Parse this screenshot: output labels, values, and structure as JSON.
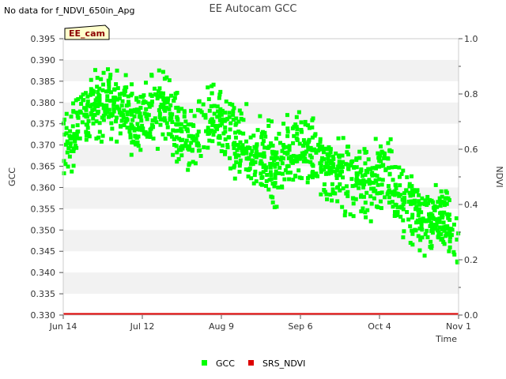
{
  "header": {
    "title": "EE Autocam GCC",
    "no_data_note": "No data for f_NDVI_650in_Apg",
    "site_label": "EE_cam"
  },
  "colors": {
    "gcc": "#00ff00",
    "ndvi": "#dd0000",
    "band": "#f2f2f2"
  },
  "chart_data": {
    "type": "scatter",
    "title": "EE Autocam GCC",
    "xlabel": "Time",
    "ylabel": "GCC",
    "y2label": "NDVI",
    "x_range_days": [
      0,
      140
    ],
    "ylim": [
      0.33,
      0.395
    ],
    "y2lim": [
      0.0,
      1.0
    ],
    "x_ticks": [
      {
        "day": 0,
        "label": "Jun 14"
      },
      {
        "day": 28,
        "label": "Jul 12"
      },
      {
        "day": 56,
        "label": "Aug 9"
      },
      {
        "day": 84,
        "label": "Sep 6"
      },
      {
        "day": 112,
        "label": "Oct 4"
      },
      {
        "day": 140,
        "label": "Nov 1"
      }
    ],
    "y_ticks": [
      "0.330",
      "0.335",
      "0.340",
      "0.345",
      "0.350",
      "0.355",
      "0.360",
      "0.365",
      "0.370",
      "0.375",
      "0.380",
      "0.385",
      "0.390",
      "0.395"
    ],
    "y2_ticks": [
      "0.0",
      "0.2",
      "0.4",
      "0.6",
      "0.8",
      "1.0"
    ],
    "legend": [
      "GCC",
      "SRS_NDVI"
    ],
    "series": [
      {
        "name": "GCC",
        "trend": [
          [
            0,
            0.37
          ],
          [
            3,
            0.372
          ],
          [
            6,
            0.376
          ],
          [
            10,
            0.378
          ],
          [
            14,
            0.38
          ],
          [
            18,
            0.38
          ],
          [
            22,
            0.378
          ],
          [
            26,
            0.375
          ],
          [
            30,
            0.377
          ],
          [
            34,
            0.379
          ],
          [
            38,
            0.376
          ],
          [
            42,
            0.373
          ],
          [
            46,
            0.371
          ],
          [
            50,
            0.374
          ],
          [
            54,
            0.377
          ],
          [
            58,
            0.373
          ],
          [
            62,
            0.37
          ],
          [
            66,
            0.369
          ],
          [
            70,
            0.367
          ],
          [
            74,
            0.365
          ],
          [
            78,
            0.367
          ],
          [
            82,
            0.369
          ],
          [
            86,
            0.368
          ],
          [
            90,
            0.367
          ],
          [
            94,
            0.365
          ],
          [
            98,
            0.363
          ],
          [
            102,
            0.362
          ],
          [
            106,
            0.361
          ],
          [
            110,
            0.362
          ],
          [
            114,
            0.364
          ],
          [
            118,
            0.36
          ],
          [
            122,
            0.356
          ],
          [
            126,
            0.354
          ],
          [
            130,
            0.352
          ],
          [
            134,
            0.353
          ],
          [
            137,
            0.35
          ],
          [
            140,
            0.346
          ]
        ],
        "spread": 0.012
      },
      {
        "name": "SRS_NDVI",
        "points": [
          [
            0,
            0.0
          ],
          [
            140,
            0.0
          ]
        ]
      }
    ]
  }
}
